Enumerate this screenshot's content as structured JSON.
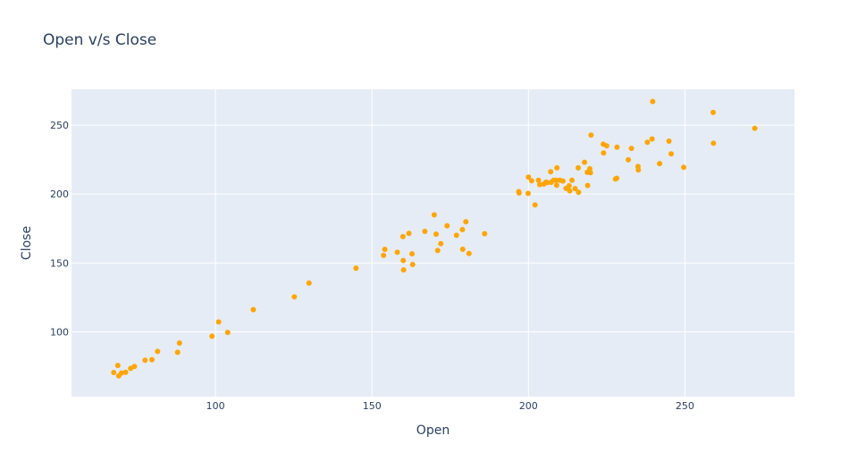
{
  "chart_data": {
    "type": "scatter",
    "title": "Open v/s Close",
    "xlabel": "Open",
    "ylabel": "Close",
    "xlim": [
      54,
      285
    ],
    "ylim": [
      53,
      276
    ],
    "xticks": [
      100,
      150,
      200,
      250
    ],
    "yticks": [
      100,
      150,
      200,
      250
    ],
    "grid": true,
    "marker_color": "#ffa500",
    "plot_bg": "#e5ecf6",
    "series": [
      {
        "points": [
          [
            67.5,
            70.5
          ],
          [
            68.8,
            75.6
          ],
          [
            69.1,
            68.1
          ],
          [
            70.0,
            70.2
          ],
          [
            71.3,
            70.7
          ],
          [
            72.9,
            73.5
          ],
          [
            74.1,
            74.9
          ],
          [
            77.5,
            79.4
          ],
          [
            79.7,
            79.8
          ],
          [
            81.5,
            85.8
          ],
          [
            87.9,
            85.2
          ],
          [
            88.5,
            91.9
          ],
          [
            98.9,
            96.8
          ],
          [
            101.0,
            107.2
          ],
          [
            103.9,
            99.6
          ],
          [
            112.1,
            116.1
          ],
          [
            125.2,
            125.4
          ],
          [
            129.9,
            135.4
          ],
          [
            144.9,
            146.2
          ],
          [
            153.7,
            155.5
          ],
          [
            154.1,
            159.9
          ],
          [
            158.1,
            157.8
          ],
          [
            159.9,
            169.1
          ],
          [
            160.0,
            151.8
          ],
          [
            160.1,
            145.0
          ],
          [
            161.8,
            171.5
          ],
          [
            162.8,
            156.6
          ],
          [
            163.0,
            148.9
          ],
          [
            166.9,
            172.9
          ],
          [
            169.9,
            184.9
          ],
          [
            170.5,
            170.9
          ],
          [
            171.0,
            159.1
          ],
          [
            172.0,
            164.0
          ],
          [
            174.0,
            177.0
          ],
          [
            177.0,
            170.1
          ],
          [
            178.9,
            174.2
          ],
          [
            179.0,
            160.0
          ],
          [
            180.0,
            179.9
          ],
          [
            181.0,
            156.9
          ],
          [
            186.0,
            171.2
          ],
          [
            196.9,
            201.8
          ],
          [
            197.0,
            200.8
          ],
          [
            199.9,
            200.5
          ],
          [
            200.0,
            212.3
          ],
          [
            201.0,
            209.6
          ],
          [
            202.1,
            192.1
          ],
          [
            203.2,
            210.0
          ],
          [
            203.6,
            206.9
          ],
          [
            204.9,
            207.3
          ],
          [
            205.6,
            208.7
          ],
          [
            206.0,
            208.3
          ],
          [
            207.1,
            216.2
          ],
          [
            207.2,
            208.5
          ],
          [
            208.0,
            210.0
          ],
          [
            208.9,
            210.0
          ],
          [
            209.0,
            206.4
          ],
          [
            209.1,
            219.0
          ],
          [
            210.0,
            210.0
          ],
          [
            211.0,
            209.5
          ],
          [
            212.0,
            204.1
          ],
          [
            213.0,
            206.0
          ],
          [
            213.2,
            202.3
          ],
          [
            213.9,
            210.0
          ],
          [
            214.9,
            204.0
          ],
          [
            215.9,
            219.0
          ],
          [
            216.0,
            201.3
          ],
          [
            217.9,
            223.1
          ],
          [
            218.8,
            215.8
          ],
          [
            218.9,
            206.2
          ],
          [
            219.6,
            218.4
          ],
          [
            219.8,
            215.5
          ],
          [
            220.0,
            242.8
          ],
          [
            223.9,
            236.2
          ],
          [
            224.0,
            229.8
          ],
          [
            225.0,
            235.0
          ],
          [
            227.8,
            210.9
          ],
          [
            228.2,
            211.5
          ],
          [
            228.3,
            234.0
          ],
          [
            231.9,
            224.9
          ],
          [
            232.9,
            233.1
          ],
          [
            235.0,
            220.0
          ],
          [
            235.1,
            217.5
          ],
          [
            238.0,
            237.6
          ],
          [
            239.5,
            240.0
          ],
          [
            239.7,
            267.2
          ],
          [
            241.9,
            222.1
          ],
          [
            244.9,
            238.4
          ],
          [
            245.6,
            229.2
          ],
          [
            249.6,
            219.4
          ],
          [
            259.0,
            259.2
          ],
          [
            259.1,
            236.9
          ],
          [
            272.3,
            247.7
          ]
        ]
      }
    ]
  }
}
